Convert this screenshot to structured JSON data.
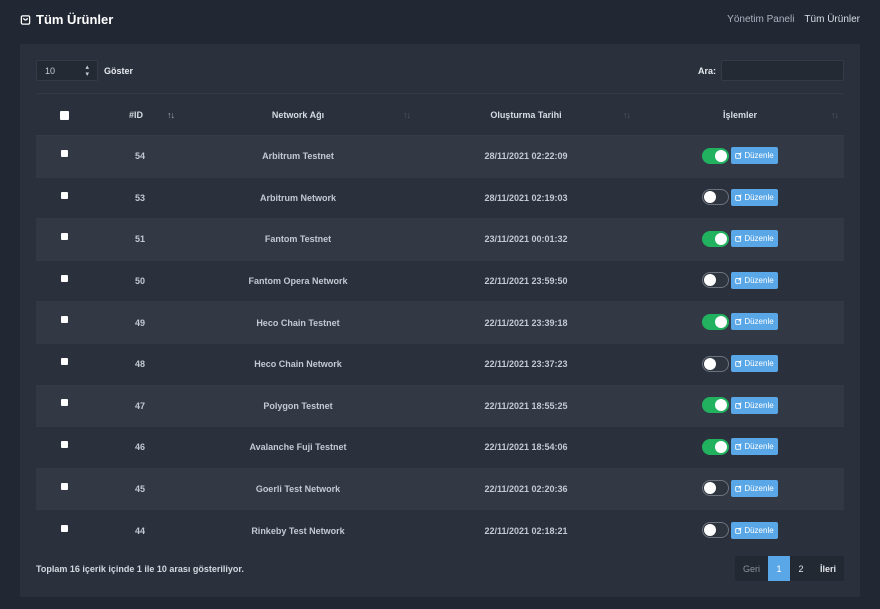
{
  "header": {
    "title": "Tüm Ürünler",
    "breadcrumb": [
      "Yönetim Paneli",
      "Tüm Ürünler"
    ]
  },
  "controls": {
    "length_value": "10",
    "length_label": "Göster",
    "search_label": "Ara:",
    "search_value": ""
  },
  "table": {
    "columns": [
      "#ID",
      "Network Ağı",
      "Oluşturma Tarihi",
      "İşlemler"
    ],
    "edit_label": "Düzenle",
    "rows": [
      {
        "id": "54",
        "network": "Arbitrum Testnet",
        "date": "28/11/2021 02:22:09",
        "active": true
      },
      {
        "id": "53",
        "network": "Arbitrum Network",
        "date": "28/11/2021 02:19:03",
        "active": false
      },
      {
        "id": "51",
        "network": "Fantom Testnet",
        "date": "23/11/2021 00:01:32",
        "active": true
      },
      {
        "id": "50",
        "network": "Fantom Opera Network",
        "date": "22/11/2021 23:59:50",
        "active": false
      },
      {
        "id": "49",
        "network": "Heco Chain Testnet",
        "date": "22/11/2021 23:39:18",
        "active": true
      },
      {
        "id": "48",
        "network": "Heco Chain Network",
        "date": "22/11/2021 23:37:23",
        "active": false
      },
      {
        "id": "47",
        "network": "Polygon Testnet",
        "date": "22/11/2021 18:55:25",
        "active": true
      },
      {
        "id": "46",
        "network": "Avalanche Fuji Testnet",
        "date": "22/11/2021 18:54:06",
        "active": true
      },
      {
        "id": "45",
        "network": "Goerli Test Network",
        "date": "22/11/2021 02:20:36",
        "active": false
      },
      {
        "id": "44",
        "network": "Rinkeby Test Network",
        "date": "22/11/2021 02:18:21",
        "active": false
      }
    ]
  },
  "footer": {
    "info": "Toplam 16 içerik içinde 1 ile 10 arası gösteriliyor.",
    "prev": "Geri",
    "pages": [
      "1",
      "2"
    ],
    "current_page": "1",
    "next": "İleri"
  },
  "colors": {
    "background": "#222833",
    "card": "#2b313c",
    "accent": "#5aa7e8",
    "toggle_on": "#21b15f"
  },
  "icons": {
    "title": "shopping-bag-icon",
    "edit": "edit-icon",
    "sort": "sort-arrows-icon"
  }
}
